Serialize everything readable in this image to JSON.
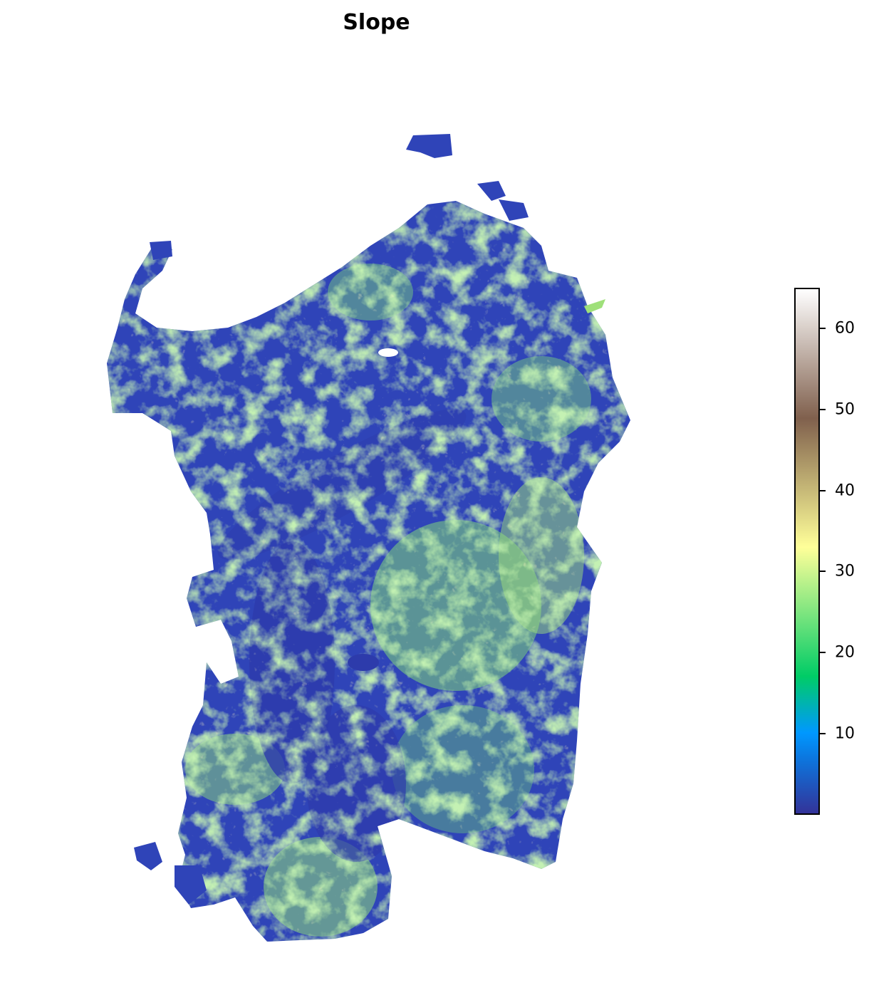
{
  "title": "Slope",
  "map": {
    "subject": "Sardinia slope raster",
    "land_colors": {
      "flat": "#2e3db0",
      "low": "#1f5fd0",
      "mid": "#21b36b",
      "high": "#9fe07a",
      "steep": "#e6e08a"
    }
  },
  "colorbar": {
    "colormap": "terrain",
    "min": 0,
    "max": 65,
    "stops": [
      {
        "v": 0,
        "c": "#333399"
      },
      {
        "v": 7,
        "c": "#0b78e0"
      },
      {
        "v": 10,
        "c": "#0098ff"
      },
      {
        "v": 17,
        "c": "#00cc66"
      },
      {
        "v": 33,
        "c": "#ffff99"
      },
      {
        "v": 49,
        "c": "#80604d"
      },
      {
        "v": 65,
        "c": "#ffffff"
      }
    ],
    "ticks": [
      {
        "value": 10,
        "label": "10"
      },
      {
        "value": 20,
        "label": "20"
      },
      {
        "value": 30,
        "label": "30"
      },
      {
        "value": 40,
        "label": "40"
      },
      {
        "value": 50,
        "label": "50"
      },
      {
        "value": 60,
        "label": "60"
      }
    ]
  }
}
